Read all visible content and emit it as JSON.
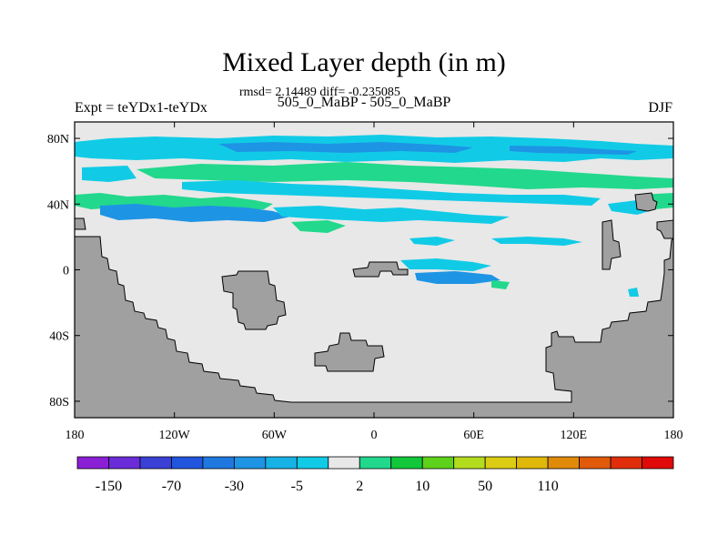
{
  "chart_data": {
    "type": "heatmap",
    "title": "Mixed Layer depth (in m)",
    "stats_line": "rmsd= 2.14489 diff= -0.235085",
    "left_label": "Expt = teYDx1-teYDx",
    "center_label": "505_0_MaBP - 505_0_MaBP",
    "right_label": "DJF",
    "x_ticks": [
      "180",
      "120W",
      "60W",
      "0",
      "60E",
      "120E",
      "180"
    ],
    "y_ticks": [
      "80N",
      "40N",
      "0",
      "40S",
      "80S"
    ],
    "xlim": [
      -180,
      180
    ],
    "ylim": [
      -90,
      90
    ],
    "colorbar": {
      "colors": [
        "#8a1fd6",
        "#6a2bd9",
        "#3a3fd6",
        "#2255dd",
        "#1f78e0",
        "#1e94e4",
        "#16b2e6",
        "#11cbe6",
        "#e8e8e8",
        "#22d88c",
        "#12c83a",
        "#5ed21a",
        "#b4dc1e",
        "#dccd14",
        "#e0b80a",
        "#e08a0a",
        "#e05a0a",
        "#e02e0a",
        "#e00a0a"
      ],
      "labels": [
        "-150",
        "-70",
        "-30",
        "-5",
        "2",
        "10",
        "50",
        "110"
      ]
    }
  }
}
